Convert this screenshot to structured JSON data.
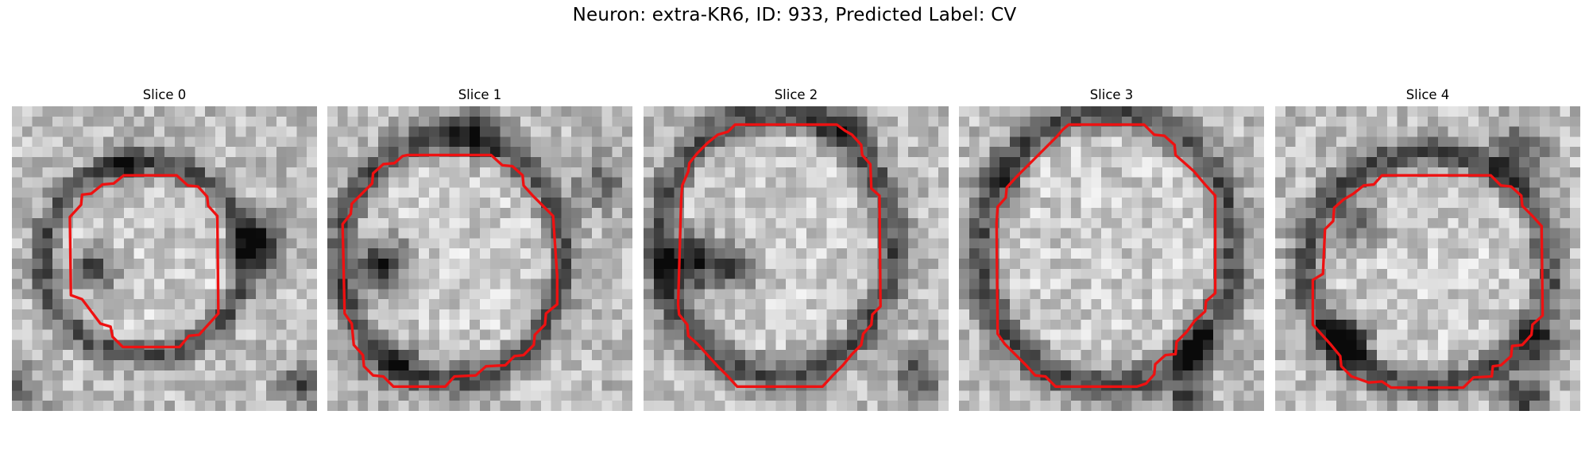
{
  "figure": {
    "title": "Neuron: extra-KR6, ID: 933, Predicted Label: CV"
  },
  "panels": [
    {
      "title": "Slice 0"
    },
    {
      "title": "Slice 1"
    },
    {
      "title": "Slice 2"
    },
    {
      "title": "Slice 3"
    },
    {
      "title": "Slice 4"
    }
  ],
  "colors": {
    "contour": "#ee1111",
    "background": "#ffffff"
  }
}
